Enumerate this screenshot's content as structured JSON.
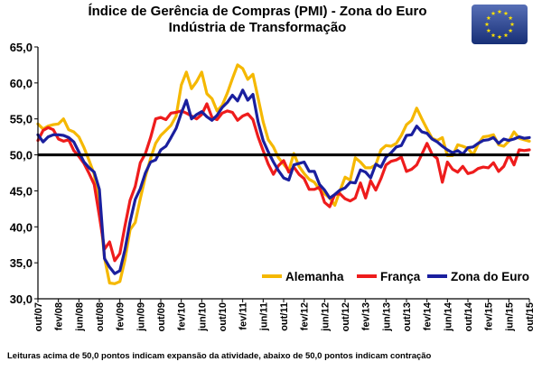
{
  "flag_colors": {
    "background": "#1f3f9e",
    "stars": "#ffe000"
  },
  "chart_data": {
    "type": "line",
    "title": "Índice de Gerência de Compras (PMI) - Zona do Euro",
    "subtitle": "Indústria de Transformação",
    "footnote": "Leituras acima de 50,0 pontos indicam expansão da atividade, abaixo de 50,0 pontos indicam contração",
    "xlabel": "",
    "ylabel": "",
    "ylim": [
      30,
      65
    ],
    "yticks": [
      "30,0",
      "35,0",
      "40,0",
      "45,0",
      "50,0",
      "55,0",
      "60,0",
      "65,0"
    ],
    "reference_line": 50,
    "x_tick_labels": [
      "out/07",
      "fev/08",
      "jun/08",
      "out/08",
      "fev/09",
      "jun/09",
      "out/09",
      "fev/10",
      "jun/10",
      "out/10",
      "fev/11",
      "jun/11",
      "out/11",
      "fev/12",
      "jun/12",
      "out/12",
      "fev/13",
      "jun/13",
      "out/13",
      "fev/14",
      "jun/14",
      "out/14",
      "fev/15",
      "jun/15",
      "out/15"
    ],
    "legend_position": "bottom-right",
    "series": [
      {
        "name": "Alemanha",
        "color": "#f5b800",
        "values": [
          54.3,
          53.6,
          54.0,
          54.2,
          54.3,
          55.0,
          53.5,
          53.2,
          52.5,
          51.0,
          49.2,
          47.3,
          42.9,
          35.7,
          32.2,
          32.1,
          32.4,
          35.4,
          39.6,
          40.6,
          43.9,
          47.0,
          49.5,
          51.6,
          52.7,
          53.4,
          54.1,
          55.4,
          59.7,
          61.5,
          59.2,
          60.2,
          61.5,
          58.5,
          57.8,
          56.1,
          56.9,
          58.6,
          60.6,
          62.5,
          62.0,
          60.5,
          61.2,
          57.9,
          54.6,
          52.1,
          51.1,
          49.6,
          48.7,
          47.8,
          50.2,
          48.4,
          47.4,
          46.6,
          46.2,
          45.2,
          44.6,
          44.0,
          43.0,
          45.0,
          46.9,
          46.5,
          49.6,
          49.0,
          48.2,
          48.2,
          48.6,
          50.7,
          51.3,
          51.2,
          51.6,
          52.7,
          54.2,
          54.8,
          56.5,
          55.0,
          53.6,
          52.3,
          52.0,
          52.4,
          49.9,
          49.9,
          51.4,
          51.2,
          50.9,
          50.0,
          51.5,
          52.5,
          52.6,
          52.8,
          51.4,
          51.2,
          51.9,
          53.2,
          52.3,
          52.1,
          51.9
        ]
      },
      {
        "name": "França",
        "color": "#ee1c1c",
        "values": [
          52.0,
          53.4,
          53.8,
          53.5,
          52.2,
          51.9,
          52.1,
          50.6,
          49.8,
          48.8,
          47.4,
          45.9,
          41.5,
          36.9,
          37.9,
          35.3,
          36.3,
          40.1,
          43.7,
          45.6,
          48.9,
          50.2,
          52.4,
          55.0,
          55.2,
          54.9,
          55.8,
          55.9,
          56.1,
          55.8,
          55.4,
          55.0,
          55.6,
          57.1,
          55.2,
          54.9,
          55.8,
          56.1,
          55.9,
          54.8,
          55.4,
          55.7,
          54.9,
          52.5,
          50.6,
          48.7,
          47.3,
          48.5,
          49.2,
          47.6,
          48.3,
          47.3,
          46.7,
          45.2,
          45.2,
          45.5,
          43.4,
          42.8,
          44.5,
          44.6,
          43.9,
          43.6,
          44.0,
          46.1,
          44.0,
          46.4,
          45.1,
          46.7,
          48.6,
          49.1,
          49.3,
          49.7,
          47.7,
          48.0,
          48.6,
          50.1,
          51.6,
          50.1,
          49.5,
          46.2,
          49.0,
          48.0,
          47.6,
          48.4,
          47.4,
          47.6,
          48.1,
          48.3,
          48.2,
          48.9,
          47.7,
          48.4,
          50.0,
          48.6,
          50.7,
          50.6,
          50.7
        ]
      },
      {
        "name": "Zona do Euro",
        "color": "#1a1f9e",
        "values": [
          52.8,
          51.8,
          52.5,
          52.8,
          52.8,
          52.7,
          52.4,
          51.8,
          50.4,
          49.0,
          48.2,
          47.6,
          45.2,
          35.6,
          34.4,
          33.5,
          33.9,
          36.8,
          40.7,
          43.8,
          45.3,
          47.5,
          49.0,
          49.3,
          50.7,
          51.2,
          52.4,
          53.7,
          55.8,
          57.6,
          55.0,
          55.6,
          56.0,
          55.3,
          54.8,
          55.5,
          56.6,
          57.3,
          58.3,
          57.5,
          59.0,
          57.6,
          58.4,
          54.6,
          52.0,
          50.4,
          49.0,
          47.8,
          46.8,
          46.5,
          48.6,
          48.8,
          49.0,
          47.7,
          47.7,
          45.9,
          45.1,
          44.0,
          44.5,
          45.1,
          45.4,
          46.2,
          46.1,
          47.9,
          47.6,
          46.8,
          48.7,
          48.3,
          49.7,
          50.3,
          51.1,
          51.3,
          52.7,
          52.8,
          54.0,
          53.2,
          53.0,
          52.2,
          51.8,
          51.2,
          50.7,
          50.3,
          50.6,
          50.1,
          51.0,
          51.1,
          51.6,
          52.0,
          52.1,
          52.4,
          51.6,
          52.2,
          52.0,
          52.2,
          52.5,
          52.3,
          52.4
        ]
      }
    ]
  }
}
